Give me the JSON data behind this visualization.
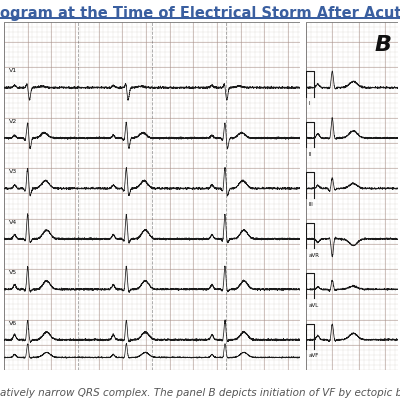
{
  "title_text": "ogram at the Time of Electrical Storm After Acute M",
  "caption_text": "atively narrow QRS complex. The panel B depicts initiation of VF by ectopic beat c",
  "title_color": "#3a5fa0",
  "title_fontsize": 10.5,
  "caption_fontsize": 7.5,
  "caption_color": "#555555",
  "ecg_bg_color": "#ddd5cc",
  "ecg_grid_minor_color": "#b8aca4",
  "ecg_grid_major_color": "#a89088",
  "ecg_line_color": "#1a1a1a",
  "outer_bg": "#ffffff",
  "separator_color": "#444444",
  "panel_b_label": "B",
  "panel_b_label_color": "#111111",
  "blue_line_color": "#3a5fa0",
  "heart_rate": 72,
  "leads_left": [
    "V1",
    "V2",
    "V3",
    "V4",
    "V5",
    "V6"
  ],
  "leads_right": [
    "I",
    "II",
    "III",
    "aVR",
    "aVL",
    "aVF"
  ]
}
